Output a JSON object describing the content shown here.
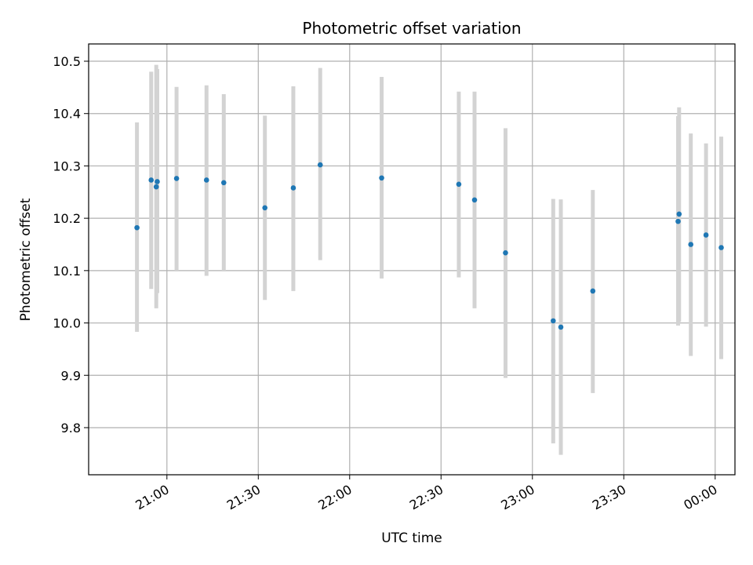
{
  "chart_data": {
    "type": "scatter",
    "title": "Photometric offset variation",
    "xlabel": "UTC time",
    "ylabel": "Photometric offset",
    "x_axis": "time",
    "x_ticks": [
      "21:00",
      "21:30",
      "22:00",
      "22:30",
      "23:00",
      "23:30",
      "00:00"
    ],
    "x_tick_minutes": [
      1260,
      1290,
      1320,
      1350,
      1380,
      1410,
      1440
    ],
    "xlim_minutes": [
      1234.3,
      1446.5
    ],
    "y_ticks": [
      9.8,
      9.9,
      10.0,
      10.1,
      10.2,
      10.3,
      10.4,
      10.5
    ],
    "ylim": [
      9.71,
      10.533
    ],
    "grid": true,
    "marker_color": "#1f77b4",
    "errorbar_color": "#d3d3d3",
    "series": [
      {
        "name": "",
        "points": [
          {
            "t": "20:50:10",
            "y": 10.182,
            "lo": 9.983,
            "hi": 10.383
          },
          {
            "t": "20:54:50",
            "y": 10.273,
            "lo": 10.065,
            "hi": 10.48
          },
          {
            "t": "20:56:30",
            "y": 10.26,
            "lo": 10.028,
            "hi": 10.493
          },
          {
            "t": "20:56:50",
            "y": 10.27,
            "lo": 10.057,
            "hi": 10.485
          },
          {
            "t": "21:03:10",
            "y": 10.276,
            "lo": 10.1,
            "hi": 10.451
          },
          {
            "t": "21:13:00",
            "y": 10.273,
            "lo": 10.09,
            "hi": 10.454
          },
          {
            "t": "21:18:40",
            "y": 10.268,
            "lo": 10.1,
            "hi": 10.437
          },
          {
            "t": "21:32:10",
            "y": 10.22,
            "lo": 10.044,
            "hi": 10.396
          },
          {
            "t": "21:41:30",
            "y": 10.258,
            "lo": 10.061,
            "hi": 10.452
          },
          {
            "t": "21:50:20",
            "y": 10.302,
            "lo": 10.12,
            "hi": 10.487
          },
          {
            "t": "22:10:30",
            "y": 10.277,
            "lo": 10.085,
            "hi": 10.47
          },
          {
            "t": "22:35:50",
            "y": 10.265,
            "lo": 10.087,
            "hi": 10.442
          },
          {
            "t": "22:41:00",
            "y": 10.235,
            "lo": 10.028,
            "hi": 10.442
          },
          {
            "t": "22:51:10",
            "y": 10.134,
            "lo": 9.895,
            "hi": 10.372
          },
          {
            "t": "23:06:50",
            "y": 10.004,
            "lo": 9.77,
            "hi": 10.237
          },
          {
            "t": "23:09:20",
            "y": 9.992,
            "lo": 9.748,
            "hi": 10.236
          },
          {
            "t": "23:19:50",
            "y": 10.061,
            "lo": 9.866,
            "hi": 10.254
          },
          {
            "t": "23:47:50",
            "y": 10.194,
            "lo": 9.995,
            "hi": 10.395
          },
          {
            "t": "23:48:10",
            "y": 10.208,
            "lo": 10.002,
            "hi": 10.412
          },
          {
            "t": "23:52:00",
            "y": 10.15,
            "lo": 9.937,
            "hi": 10.362
          },
          {
            "t": "23:57:00",
            "y": 10.168,
            "lo": 9.993,
            "hi": 10.343
          },
          {
            "t": "00:02:00",
            "y": 10.144,
            "lo": 9.931,
            "hi": 10.356
          }
        ]
      }
    ]
  }
}
